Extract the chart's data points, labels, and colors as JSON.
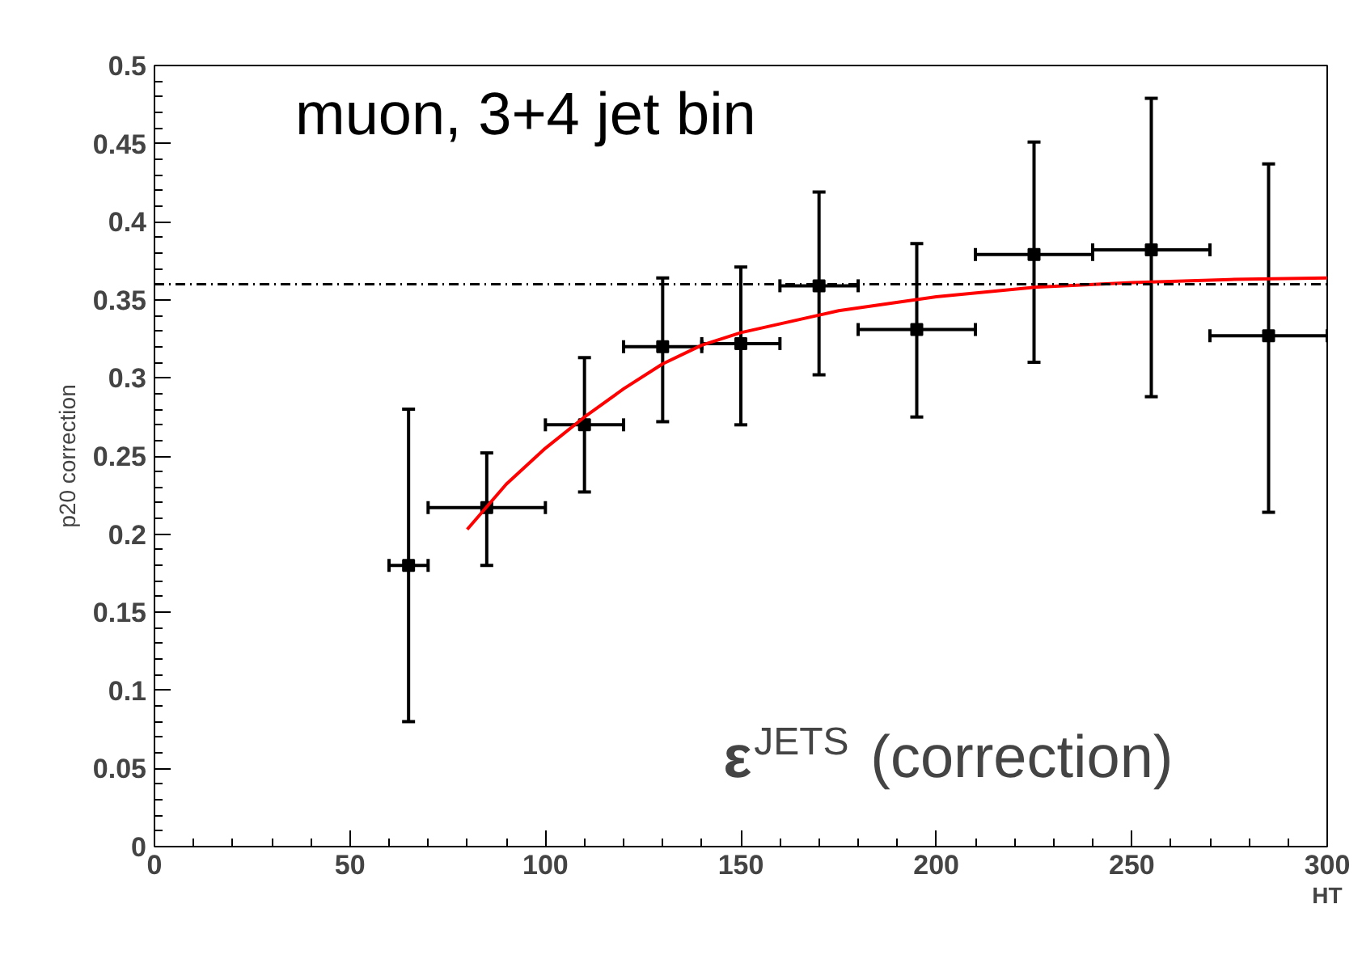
{
  "chart_data": {
    "type": "scatter",
    "xlabel": "HT",
    "ylabel": "p20 correction",
    "annotations": [
      "muon, 3+4 jet bin",
      "ε$^{JETS}$ (correction)"
    ],
    "xlim": [
      0,
      300
    ],
    "ylim": [
      0,
      0.5
    ],
    "xticks": [
      0,
      50,
      100,
      150,
      200,
      250,
      300
    ],
    "yticks": [
      0,
      0.05,
      0.1,
      0.15,
      0.2,
      0.25,
      0.3,
      0.35,
      0.4,
      0.45,
      0.5
    ],
    "grid": false,
    "marker": "square",
    "ref_lines": [
      {
        "axis": "y",
        "value": 0.36,
        "color": "#000000",
        "line_style": "dashdot"
      }
    ],
    "series": [
      {
        "color": "#000000",
        "x": [
          65,
          85,
          110,
          130,
          150,
          170,
          195,
          225,
          255,
          285
        ],
        "values": [
          0.18,
          0.217,
          0.27,
          0.32,
          0.322,
          0.359,
          0.331,
          0.379,
          0.382,
          0.327
        ],
        "errors": [
          [
            0.08,
            0.28
          ],
          [
            0.18,
            0.252
          ],
          [
            0.227,
            0.313
          ],
          [
            0.272,
            0.364
          ],
          [
            0.27,
            0.371
          ],
          [
            0.302,
            0.419
          ],
          [
            0.275,
            0.386
          ],
          [
            0.31,
            0.451
          ],
          [
            0.288,
            0.479
          ],
          [
            0.214,
            0.437
          ]
        ],
        "xerrors": [
          [
            60,
            70
          ],
          [
            70,
            100
          ],
          [
            100,
            120
          ],
          [
            120,
            140
          ],
          [
            140,
            160
          ],
          [
            160,
            180
          ],
          [
            180,
            210
          ],
          [
            210,
            240
          ],
          [
            240,
            270
          ],
          [
            270,
            300
          ]
        ]
      },
      {
        "type": "line",
        "marker": "none",
        "color": "#ff0000",
        "x": [
          80,
          90,
          100,
          110,
          120,
          130,
          140,
          150,
          175,
          200,
          225,
          250,
          275,
          300
        ],
        "values": [
          0.203,
          0.232,
          0.255,
          0.275,
          0.293,
          0.309,
          0.321,
          0.329,
          0.343,
          0.352,
          0.358,
          0.361,
          0.363,
          0.364
        ]
      }
    ]
  }
}
